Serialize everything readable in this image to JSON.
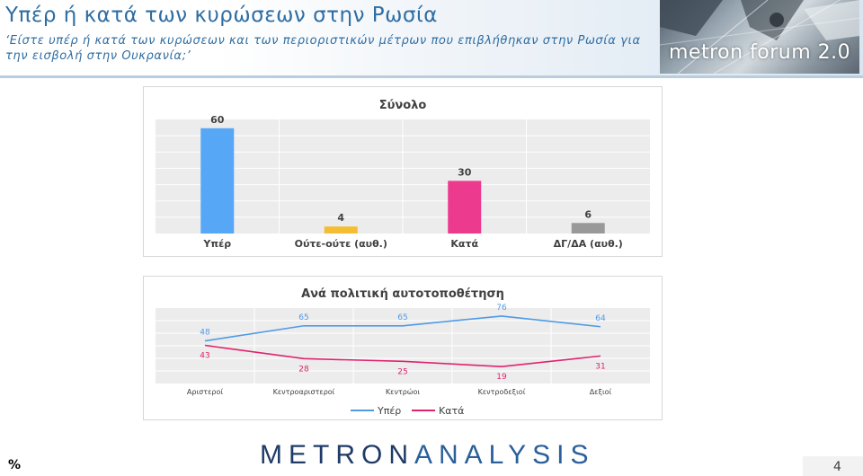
{
  "header": {
    "title": "Υπέρ ή κατά των κυρώσεων στην Ρωσία",
    "subtitle": "‘Είστε υπέρ ή κατά των κυρώσεων και των περιοριστικών μέτρων που επιβλήθηκαν στην Ρωσία για την εισβολή στην Ουκρανία;’",
    "logo_text": "metron forum 2.0"
  },
  "footer": {
    "brand_bold": "METRON",
    "brand_light": "ANALYSIS",
    "unit": "%",
    "page_number": "4"
  },
  "chart_data": [
    {
      "type": "bar",
      "title": "Σύνολο",
      "categories": [
        "Υπέρ",
        "Ούτε-ούτε (αυθ.)",
        "Κατά",
        "ΔΓ/ΔΑ (αυθ.)"
      ],
      "values": [
        60,
        4,
        30,
        6
      ],
      "colors": [
        "#56a7f6",
        "#f5bd33",
        "#ec3a8f",
        "#999999"
      ],
      "ylim": [
        0,
        65
      ],
      "grid": true
    },
    {
      "type": "line",
      "title": "Ανά πολιτική αυτοτοποθέτηση",
      "categories": [
        "Αριστεροί",
        "Κεντροαριστεροί",
        "Κεντρώοι",
        "Κεντροδεξιοί",
        "Δεξιοί"
      ],
      "series": [
        {
          "name": "Υπέρ",
          "values": [
            48,
            65,
            65,
            76,
            64
          ],
          "color": "#4f9ae6"
        },
        {
          "name": "Κατά",
          "values": [
            43,
            28,
            25,
            19,
            31
          ],
          "color": "#e0236e"
        }
      ],
      "ylim": [
        0,
        85
      ],
      "grid": true,
      "legend": "bottom"
    }
  ]
}
